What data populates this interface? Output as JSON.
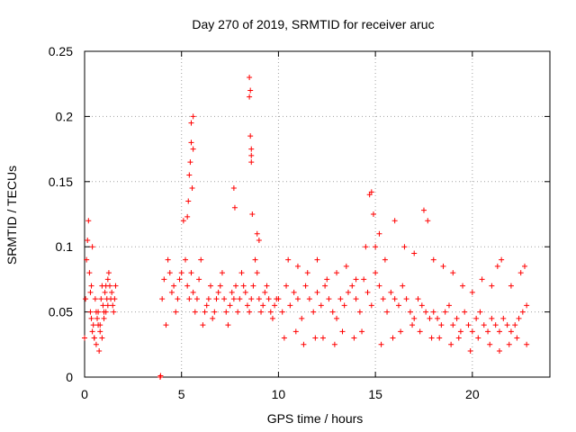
{
  "chart_data": {
    "type": "scatter",
    "title": "Day 270 of 2019, SRMTID for receiver aruc",
    "xlabel": "GPS time / hours",
    "ylabel": "SRMTID / TECUs",
    "xlim": [
      0,
      24
    ],
    "ylim": [
      0,
      0.25
    ],
    "xticks": [
      0,
      5,
      10,
      15,
      20
    ],
    "xtick_labels": [
      "0",
      "5",
      "10",
      "15",
      "20"
    ],
    "yticks": [
      0,
      0.05,
      0.1,
      0.15,
      0.2,
      0.25
    ],
    "ytick_labels": [
      "0",
      "0.05",
      "0.1",
      "0.15",
      "0.2",
      "0.25"
    ],
    "grid": true,
    "marker": "+",
    "series": [
      {
        "name": "SRMTID",
        "color": "#ff0000",
        "x": [
          0.0,
          0.05,
          0.1,
          0.15,
          0.2,
          0.25,
          0.3,
          0.35,
          0.4,
          0.45,
          0.5,
          0.55,
          0.6,
          0.65,
          0.7,
          0.75,
          0.8,
          0.85,
          0.9,
          0.95,
          1.0,
          1.05,
          1.1,
          1.15,
          1.2,
          1.25,
          1.3,
          1.35,
          1.4,
          1.45,
          1.5,
          1.55,
          1.6,
          0.3,
          0.35,
          0.4,
          0.5,
          0.6,
          0.7,
          0.8,
          0.9,
          1.0,
          1.1,
          1.2,
          3.9,
          3.92,
          4.0,
          4.1,
          4.2,
          4.3,
          4.4,
          4.5,
          4.6,
          4.7,
          4.8,
          4.9,
          5.0,
          5.1,
          5.2,
          5.3,
          5.4,
          5.5,
          5.6,
          5.7,
          5.8,
          5.9,
          6.0,
          6.1,
          6.2,
          6.3,
          6.4,
          6.5,
          6.6,
          6.7,
          6.8,
          6.9,
          7.0,
          7.1,
          7.2,
          7.3,
          7.4,
          7.5,
          7.6,
          7.7,
          7.8,
          7.9,
          8.0,
          8.1,
          8.2,
          8.3,
          8.4,
          8.5,
          8.6,
          8.7,
          8.8,
          8.9,
          9.0,
          9.1,
          9.2,
          9.3,
          9.4,
          9.5,
          9.6,
          9.7,
          9.8,
          9.9,
          5.3,
          5.35,
          5.4,
          5.45,
          5.5,
          5.5,
          5.55,
          5.6,
          5.6,
          7.7,
          7.75,
          8.5,
          8.5,
          8.55,
          8.55,
          8.6,
          8.6,
          8.6,
          8.65,
          8.9,
          9.0,
          10.0,
          10.2,
          10.4,
          10.6,
          10.8,
          11.0,
          11.2,
          11.4,
          11.6,
          11.8,
          12.0,
          12.2,
          12.4,
          12.6,
          12.8,
          13.0,
          13.2,
          13.4,
          13.6,
          13.8,
          14.0,
          14.2,
          14.4,
          14.6,
          14.8,
          15.0,
          15.2,
          15.4,
          15.6,
          15.8,
          16.0,
          16.2,
          16.4,
          16.6,
          16.8,
          17.0,
          17.2,
          17.4,
          17.6,
          17.8,
          18.0,
          18.2,
          18.4,
          18.6,
          18.8,
          19.0,
          19.2,
          19.4,
          19.6,
          19.8,
          20.0,
          20.2,
          20.4,
          20.6,
          20.8,
          21.0,
          21.2,
          21.4,
          21.6,
          21.8,
          22.0,
          22.2,
          22.4,
          22.6,
          22.8,
          10.5,
          11.0,
          11.5,
          12.0,
          12.5,
          13.0,
          13.5,
          14.0,
          14.5,
          14.7,
          14.8,
          14.9,
          15.0,
          15.2,
          15.5,
          16.0,
          16.5,
          17.0,
          17.5,
          17.7,
          18.0,
          18.5,
          19.0,
          19.5,
          20.0,
          20.5,
          21.0,
          21.3,
          21.5,
          22.0,
          22.5,
          22.7,
          10.3,
          10.9,
          11.3,
          11.9,
          12.3,
          12.9,
          13.3,
          13.9,
          14.3,
          15.3,
          15.9,
          16.3,
          16.9,
          17.3,
          17.9,
          18.3,
          18.9,
          19.3,
          19.9,
          20.3,
          20.9,
          21.4,
          21.9,
          22.3,
          22.8
        ],
        "y": [
          0.03,
          0.06,
          0.09,
          0.105,
          0.12,
          0.08,
          0.05,
          0.07,
          0.1,
          0.04,
          0.03,
          0.06,
          0.025,
          0.045,
          0.05,
          0.02,
          0.04,
          0.06,
          0.07,
          0.055,
          0.05,
          0.065,
          0.07,
          0.06,
          0.075,
          0.08,
          0.07,
          0.06,
          0.065,
          0.055,
          0.05,
          0.06,
          0.07,
          0.065,
          0.045,
          0.035,
          0.03,
          0.05,
          0.04,
          0.035,
          0.03,
          0.045,
          0.05,
          0.055,
          0.0,
          0.001,
          0.06,
          0.075,
          0.04,
          0.09,
          0.08,
          0.065,
          0.07,
          0.05,
          0.06,
          0.075,
          0.08,
          0.12,
          0.09,
          0.07,
          0.06,
          0.08,
          0.065,
          0.05,
          0.06,
          0.075,
          0.09,
          0.04,
          0.05,
          0.055,
          0.06,
          0.07,
          0.045,
          0.05,
          0.06,
          0.065,
          0.07,
          0.08,
          0.06,
          0.05,
          0.04,
          0.055,
          0.065,
          0.06,
          0.07,
          0.05,
          0.06,
          0.08,
          0.07,
          0.065,
          0.055,
          0.05,
          0.06,
          0.07,
          0.09,
          0.08,
          0.06,
          0.05,
          0.055,
          0.065,
          0.07,
          0.06,
          0.05,
          0.045,
          0.055,
          0.06,
          0.123,
          0.135,
          0.155,
          0.165,
          0.18,
          0.195,
          0.145,
          0.2,
          0.175,
          0.145,
          0.13,
          0.23,
          0.215,
          0.22,
          0.185,
          0.17,
          0.165,
          0.175,
          0.125,
          0.11,
          0.105,
          0.06,
          0.05,
          0.07,
          0.055,
          0.065,
          0.06,
          0.045,
          0.07,
          0.06,
          0.05,
          0.065,
          0.055,
          0.07,
          0.06,
          0.05,
          0.045,
          0.06,
          0.055,
          0.065,
          0.07,
          0.06,
          0.05,
          0.075,
          0.065,
          0.055,
          0.08,
          0.07,
          0.06,
          0.05,
          0.065,
          0.06,
          0.055,
          0.07,
          0.06,
          0.05,
          0.045,
          0.06,
          0.055,
          0.05,
          0.045,
          0.05,
          0.045,
          0.04,
          0.05,
          0.055,
          0.04,
          0.045,
          0.035,
          0.05,
          0.04,
          0.035,
          0.045,
          0.05,
          0.04,
          0.035,
          0.045,
          0.04,
          0.035,
          0.045,
          0.04,
          0.035,
          0.04,
          0.045,
          0.05,
          0.055,
          0.09,
          0.085,
          0.08,
          0.09,
          0.075,
          0.08,
          0.085,
          0.075,
          0.1,
          0.14,
          0.142,
          0.125,
          0.1,
          0.11,
          0.09,
          0.12,
          0.1,
          0.095,
          0.128,
          0.12,
          0.09,
          0.085,
          0.08,
          0.07,
          0.065,
          0.075,
          0.07,
          0.085,
          0.09,
          0.07,
          0.08,
          0.085,
          0.03,
          0.035,
          0.025,
          0.03,
          0.03,
          0.025,
          0.035,
          0.03,
          0.035,
          0.025,
          0.03,
          0.035,
          0.04,
          0.035,
          0.03,
          0.03,
          0.025,
          0.03,
          0.02,
          0.03,
          0.025,
          0.02,
          0.025,
          0.03,
          0.025
        ]
      }
    ]
  }
}
